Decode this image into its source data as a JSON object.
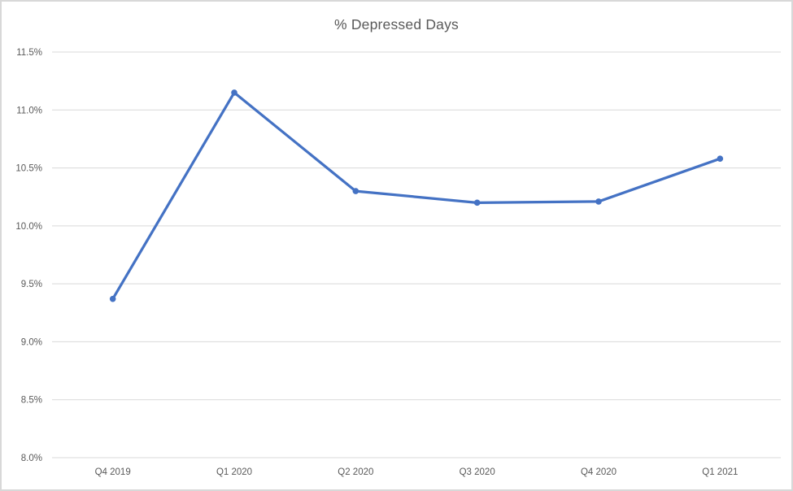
{
  "chart_data": {
    "type": "line",
    "title": "% Depressed Days",
    "categories": [
      "Q4 2019",
      "Q1 2020",
      "Q2 2020",
      "Q3 2020",
      "Q4 2020",
      "Q1 2021"
    ],
    "values": [
      9.37,
      11.15,
      10.3,
      10.2,
      10.21,
      10.58
    ],
    "xlabel": "",
    "ylabel": "",
    "ylim": [
      8.0,
      11.5
    ],
    "ytick_step": 0.5,
    "ytick_format": "percent_1dp",
    "grid": "horizontal",
    "legend": "none",
    "marker": "circle",
    "colors": {
      "line": "#4472C4",
      "marker": "#4472C4",
      "gridline": "#D9D9D9",
      "axis_labels": "#595959",
      "title": "#595959",
      "frame_border": "#D8D8D8",
      "background": "#FFFFFF"
    }
  }
}
